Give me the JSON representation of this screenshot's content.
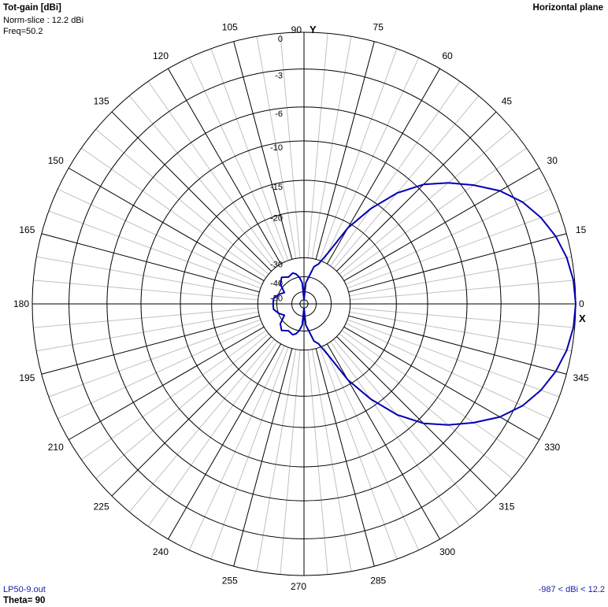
{
  "header": {
    "quantity_label": "Tot-gain [dBi]",
    "norm_slice": "Norm-slice : 12.2 dBi",
    "frequency": "Freq=50.2",
    "plane_label": "Horizontal plane"
  },
  "footer": {
    "file_name": "LP50-9.out",
    "theta": "Theta= 90",
    "range_text": "-987 < dBi < 12.2"
  },
  "colors": {
    "pattern": "#0000b4",
    "grid_major": "#000000",
    "grid_minor": "#c0c0c0",
    "footer_text": "#1a1aa6"
  },
  "chart_data": {
    "type": "polar",
    "title": "Tot-gain [dBi]",
    "plane": "Horizontal plane",
    "x_axis_label": "X",
    "y_axis_label": "Y",
    "angle_tick_labels": [
      "0",
      "15",
      "30",
      "45",
      "60",
      "75",
      "90",
      "105",
      "120",
      "135",
      "150",
      "165",
      "180",
      "195",
      "210",
      "225",
      "240",
      "255",
      "270",
      "285",
      "300",
      "315",
      "330",
      "345"
    ],
    "radial_ticks": [
      {
        "label": "0",
        "db": 0
      },
      {
        "label": "-3",
        "db": -3
      },
      {
        "label": "-6",
        "db": -6
      },
      {
        "label": "-10",
        "db": -10
      },
      {
        "label": "-15",
        "db": -15
      },
      {
        "label": "-20",
        "db": -20
      },
      {
        "label": "-30",
        "db": -30
      },
      {
        "label": "-40",
        "db": -40
      },
      {
        "label": "-50",
        "db": -50
      }
    ],
    "radial_scale": "dB (normalized to 12.2 dBi)",
    "series": [
      {
        "azimuth_deg": [
          0,
          5,
          10,
          15,
          20,
          25,
          30,
          35,
          40,
          45,
          50,
          55,
          60,
          65,
          70,
          75,
          80,
          85,
          90,
          95,
          100,
          105,
          110,
          120,
          130,
          140,
          150,
          160,
          170,
          180,
          190,
          200,
          210,
          220,
          230,
          240,
          250,
          255,
          260,
          265,
          270,
          275,
          280,
          285,
          290,
          295,
          300,
          305,
          310,
          315,
          320,
          325,
          330,
          335,
          340,
          345,
          350,
          355,
          360
        ],
        "gain_db": [
          0,
          -0.1,
          -0.4,
          -0.9,
          -1.6,
          -2.5,
          -3.7,
          -5.2,
          -7.0,
          -9.3,
          -12.3,
          -16.2,
          -21,
          -28,
          -32,
          -34,
          -40,
          -44,
          -60,
          -44,
          -40,
          -38,
          -37,
          -38,
          -36,
          -38,
          -43,
          -40,
          -38,
          -38,
          -38,
          -40,
          -43,
          -38,
          -36,
          -38,
          -37,
          -38,
          -40,
          -44,
          -60,
          -44,
          -40,
          -34,
          -32,
          -28,
          -21,
          -16.2,
          -12.3,
          -9.3,
          -7.0,
          -5.2,
          -3.7,
          -2.5,
          -1.6,
          -0.9,
          -0.4,
          -0.1,
          0
        ]
      }
    ]
  }
}
